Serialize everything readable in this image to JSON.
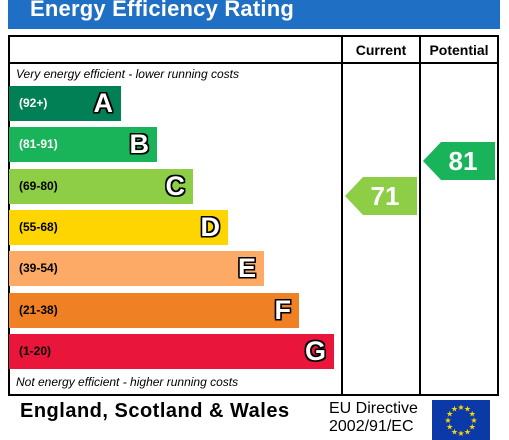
{
  "title": "Energy Efficiency Rating",
  "columns": {
    "current": "Current",
    "potential": "Potential"
  },
  "top_note": "Very energy efficient - lower running costs",
  "bottom_note": "Not energy efficient - higher running costs",
  "bands": [
    {
      "letter": "A",
      "range": "(92+)",
      "color": "#008054"
    },
    {
      "letter": "B",
      "range": "(81-91)",
      "color": "#19b459"
    },
    {
      "letter": "C",
      "range": "(69-80)",
      "color": "#8dce46"
    },
    {
      "letter": "D",
      "range": "(55-68)",
      "color": "#ffd500"
    },
    {
      "letter": "E",
      "range": "(39-54)",
      "color": "#fcaa65"
    },
    {
      "letter": "F",
      "range": "(21-38)",
      "color": "#ef8023"
    },
    {
      "letter": "G",
      "range": "(1-20)",
      "color": "#e9153b"
    }
  ],
  "current": {
    "value": "71",
    "color": "#8dce46"
  },
  "potential": {
    "value": "81",
    "color": "#19b459"
  },
  "footer": {
    "region": "England, Scotland & Wales",
    "directive_line1": "EU Directive",
    "directive_line2": "2002/91/EC",
    "flag_color": "#0b3aa8",
    "star_color": "#ffd500"
  }
}
